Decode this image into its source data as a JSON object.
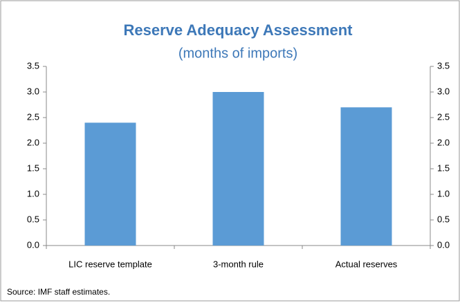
{
  "chart_data": {
    "type": "bar",
    "title": "Reserve Adequacy Assessment",
    "subtitle": "(months of imports)",
    "categories": [
      "LIC reserve template",
      "3-month rule",
      "Actual reserves"
    ],
    "values": [
      2.4,
      3.0,
      2.7
    ],
    "color": "#5b9bd5",
    "ylim": [
      0,
      3.5
    ],
    "yticks": [
      {
        "value": 0,
        "label": "0.0"
      },
      {
        "value": 0.5,
        "label": "0.5"
      },
      {
        "value": 1,
        "label": "1.0"
      },
      {
        "value": 1.5,
        "label": "1.5"
      },
      {
        "value": 2,
        "label": "2.0"
      },
      {
        "value": 2.5,
        "label": "2.5"
      },
      {
        "value": 3,
        "label": "3.0"
      },
      {
        "value": 3.5,
        "label": "3.5"
      }
    ],
    "y2lim": [
      0,
      3.5
    ],
    "y2ticks": [
      {
        "value": 0,
        "label": "0.0"
      },
      {
        "value": 0.5,
        "label": "0.5"
      },
      {
        "value": 1,
        "label": "1.0"
      },
      {
        "value": 1.5,
        "label": "1.5"
      },
      {
        "value": 2,
        "label": "2.0"
      },
      {
        "value": 2.5,
        "label": "2.5"
      },
      {
        "value": 3,
        "label": "3.0"
      },
      {
        "value": 3.5,
        "label": "3.5"
      }
    ],
    "grid": false,
    "note": "Source: IMF staff estimates."
  }
}
